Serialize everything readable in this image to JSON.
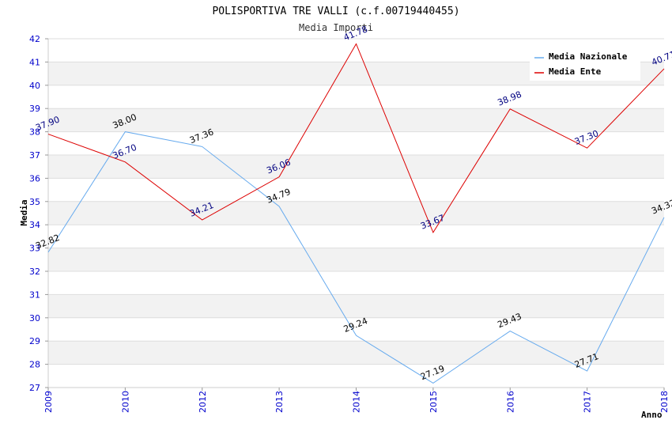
{
  "chart_data": {
    "type": "line",
    "title": "POLISPORTIVA TRE VALLI (c.f.00719440455)",
    "subtitle": "Media Importi",
    "xlabel": "Anno",
    "ylabel": "Media",
    "categories": [
      "2009",
      "2010",
      "2012",
      "2013",
      "2014",
      "2015",
      "2016",
      "2017",
      "2018"
    ],
    "ylim": [
      27,
      42
    ],
    "yticks": [
      "27",
      "28",
      "29",
      "30",
      "31",
      "32",
      "33",
      "34",
      "35",
      "36",
      "37",
      "38",
      "39",
      "40",
      "41",
      "42"
    ],
    "legend_position": "top-right",
    "series": [
      {
        "name": "Media Nazionale",
        "color": "#66aaee",
        "label_color": "#000000",
        "values": [
          32.82,
          38.0,
          37.36,
          34.79,
          29.24,
          27.19,
          29.43,
          27.71,
          34.32
        ],
        "labels": [
          "32.82",
          "38.00",
          "37.36",
          "34.79",
          "29.24",
          "27.19",
          "29.43",
          "27.71",
          "34.32"
        ]
      },
      {
        "name": "Media Ente",
        "color": "#dd0000",
        "label_color": "#000080",
        "values": [
          37.9,
          36.7,
          34.21,
          36.06,
          41.78,
          33.67,
          38.98,
          37.3,
          40.71
        ],
        "labels": [
          "37.90",
          "36.70",
          "34.21",
          "36.06",
          "41.78",
          "33.67",
          "38.98",
          "37.30",
          "40.71"
        ]
      }
    ]
  }
}
